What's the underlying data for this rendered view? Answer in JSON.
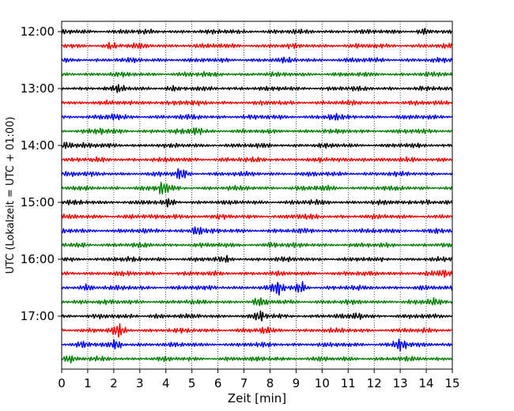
{
  "chart_data": {
    "type": "line",
    "xlabel": "Zeit  [min]",
    "ylabel": "UTC (Lokalzeit = UTC + 01:00)",
    "xlim": [
      0,
      15
    ],
    "x_ticks": [
      "0",
      "1",
      "2",
      "3",
      "4",
      "5",
      "6",
      "7",
      "8",
      "9",
      "10",
      "11",
      "12",
      "13",
      "14",
      "15"
    ],
    "y_ticks": [
      "12:00",
      "13:00",
      "14:00",
      "15:00",
      "16:00",
      "17:00"
    ],
    "trace_interval_min": 15,
    "grid": "vertical-dotted",
    "colors": [
      "#000000",
      "#ff0000",
      "#0000ff",
      "#008000"
    ],
    "traces": [
      {
        "start": "12:00",
        "color": "#000000",
        "bursts": [
          {
            "t": 13.9,
            "a": 1.6
          },
          {
            "t": 0.2,
            "a": 1.2
          }
        ]
      },
      {
        "start": "12:15",
        "color": "#ff0000",
        "bursts": [
          {
            "t": 1.9,
            "a": 1.7
          },
          {
            "t": 3.0,
            "a": 1.3
          }
        ]
      },
      {
        "start": "12:30",
        "color": "#0000ff",
        "bursts": [
          {
            "t": 8.6,
            "a": 1.2
          }
        ]
      },
      {
        "start": "12:45",
        "color": "#008000",
        "bursts": [
          {
            "t": 5.5,
            "a": 1.2
          }
        ]
      },
      {
        "start": "13:00",
        "color": "#000000",
        "bursts": [
          {
            "t": 2.2,
            "a": 1.6
          },
          {
            "t": 4.2,
            "a": 1.3
          }
        ]
      },
      {
        "start": "13:15",
        "color": "#ff0000",
        "bursts": [
          {
            "t": 3.3,
            "a": 1.3
          },
          {
            "t": 4.5,
            "a": 1.2
          }
        ]
      },
      {
        "start": "13:30",
        "color": "#0000ff",
        "bursts": [
          {
            "t": 2.0,
            "a": 1.7
          },
          {
            "t": 10.4,
            "a": 1.5
          },
          {
            "t": 5.2,
            "a": 1.2
          }
        ]
      },
      {
        "start": "13:45",
        "color": "#008000",
        "bursts": [
          {
            "t": 5.2,
            "a": 1.7
          },
          {
            "t": 1.5,
            "a": 1.4
          }
        ]
      },
      {
        "start": "14:00",
        "color": "#000000",
        "bursts": [
          {
            "t": 0.2,
            "a": 1.8
          },
          {
            "t": 1.0,
            "a": 1.3
          }
        ]
      },
      {
        "start": "14:15",
        "color": "#ff0000",
        "bursts": [
          {
            "t": 11.6,
            "a": 1.3
          },
          {
            "t": 14.6,
            "a": 1.2
          }
        ]
      },
      {
        "start": "14:30",
        "color": "#0000ff",
        "bursts": [
          {
            "t": 4.6,
            "a": 2.4
          },
          {
            "t": 0.3,
            "a": 1.4
          }
        ]
      },
      {
        "start": "14:45",
        "color": "#008000",
        "bursts": [
          {
            "t": 3.9,
            "a": 2.6
          },
          {
            "t": 10.0,
            "a": 1.3
          }
        ]
      },
      {
        "start": "15:00",
        "color": "#000000",
        "bursts": [
          {
            "t": 4.1,
            "a": 1.6
          },
          {
            "t": 14.0,
            "a": 1.6
          },
          {
            "t": 9.7,
            "a": 1.2
          }
        ]
      },
      {
        "start": "15:15",
        "color": "#ff0000",
        "bursts": [
          {
            "t": 4.4,
            "a": 1.4
          },
          {
            "t": 9.2,
            "a": 1.3
          }
        ]
      },
      {
        "start": "15:30",
        "color": "#0000ff",
        "bursts": [
          {
            "t": 5.2,
            "a": 2.2
          },
          {
            "t": 14.4,
            "a": 1.5
          }
        ]
      },
      {
        "start": "15:45",
        "color": "#008000",
        "bursts": [
          {
            "t": 8.1,
            "a": 1.4
          },
          {
            "t": 0.8,
            "a": 1.2
          }
        ]
      },
      {
        "start": "16:00",
        "color": "#000000",
        "bursts": [
          {
            "t": 6.3,
            "a": 1.5
          },
          {
            "t": 2.0,
            "a": 1.2
          }
        ]
      },
      {
        "start": "16:15",
        "color": "#ff0000",
        "bursts": [
          {
            "t": 14.7,
            "a": 1.7
          },
          {
            "t": 12.6,
            "a": 1.2
          }
        ]
      },
      {
        "start": "16:30",
        "color": "#0000ff",
        "bursts": [
          {
            "t": 8.3,
            "a": 2.5
          },
          {
            "t": 9.2,
            "a": 2.2
          },
          {
            "t": 1.0,
            "a": 1.6
          }
        ]
      },
      {
        "start": "16:45",
        "color": "#008000",
        "bursts": [
          {
            "t": 7.6,
            "a": 1.8
          },
          {
            "t": 14.3,
            "a": 1.6
          },
          {
            "t": 0.8,
            "a": 1.3
          }
        ]
      },
      {
        "start": "17:00",
        "color": "#000000",
        "bursts": [
          {
            "t": 7.6,
            "a": 1.9
          },
          {
            "t": 11.4,
            "a": 1.7
          },
          {
            "t": 3.6,
            "a": 1.3
          }
        ]
      },
      {
        "start": "17:15",
        "color": "#ff0000",
        "bursts": [
          {
            "t": 2.2,
            "a": 2.2
          },
          {
            "t": 7.8,
            "a": 1.4
          }
        ]
      },
      {
        "start": "17:30",
        "color": "#0000ff",
        "bursts": [
          {
            "t": 13.0,
            "a": 2.4
          },
          {
            "t": 2.1,
            "a": 1.9
          },
          {
            "t": 0.8,
            "a": 1.4
          }
        ]
      },
      {
        "start": "17:45",
        "color": "#008000",
        "bursts": [
          {
            "t": 0.3,
            "a": 1.6
          },
          {
            "t": 8.2,
            "a": 1.3
          }
        ]
      }
    ]
  }
}
